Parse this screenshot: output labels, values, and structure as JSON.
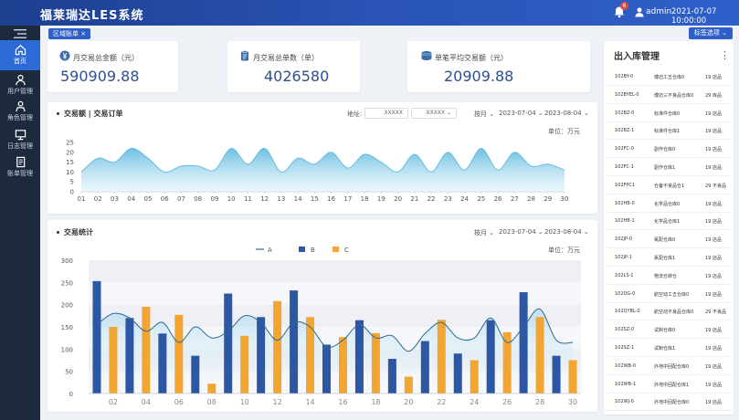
{
  "app": {
    "title": "福莱瑞达LES系统",
    "username": "admin",
    "datetime": "2021-07-07 10:00:00",
    "notification_count": "6"
  },
  "sidebar": {
    "items": [
      {
        "label": "首页"
      },
      {
        "label": "用户管理"
      },
      {
        "label": "角色管理"
      },
      {
        "label": "日志管理"
      },
      {
        "label": "账单管理"
      }
    ]
  },
  "tags": {
    "active_tab": "区域账单 ×",
    "options_label": "标签选项 ⌄"
  },
  "kpis": [
    {
      "label": "月交易总金额（元）",
      "value": "590909.88",
      "icon": "yen-coin-icon"
    },
    {
      "label": "月交易总单数（单）",
      "value": "4026580",
      "icon": "clipboard-icon"
    },
    {
      "label": "单笔平均交易额（元）",
      "value": "20909.88",
      "icon": "coin-stack-icon"
    }
  ],
  "trade_panel": {
    "title": "交易额 | 交易订单",
    "address_label": "地址:",
    "address_value_1": "XXXXX",
    "address_value_2": "XXXXX ⌄",
    "period": "按月 ⌄",
    "date_start": "2023-07-04 ⌄",
    "date_end": "2023-08-04 ⌄",
    "unit": "单位：万元"
  },
  "stats_panel": {
    "title": "交易统计",
    "period": "按月 ⌄",
    "date_start": "2023-07-04 ⌄",
    "date_end": "2023-08-04 ⌄",
    "unit": "单位：万元"
  },
  "inventory": {
    "title": "出入库管理",
    "rows": [
      [
        "102BY-0",
        "傅迈工五仓库0",
        "19 店品"
      ],
      [
        "102BYEL-0",
        "傅迈三不良品仓库0",
        "29 库品"
      ],
      [
        "102BZ-0",
        "标准件仓库0",
        "19 店品"
      ],
      [
        "102BZ-1",
        "标准件仓库1",
        "19 店品"
      ],
      [
        "102FC-0",
        "副作仓库0",
        "19 店品"
      ],
      [
        "102FC-1",
        "副作仓库1",
        "19 店品"
      ],
      [
        "102FPC1",
        "仓备不良品仓1",
        "29 不良品"
      ],
      [
        "102HB-0",
        "化学品仓库0",
        "19 店品"
      ],
      [
        "102HB-1",
        "化学品仓库1",
        "19 店品"
      ],
      [
        "102JP-0",
        "氯配仓库0",
        "19 店品"
      ],
      [
        "102JP-1",
        "氯配仓库1",
        "19 店品"
      ],
      [
        "102LS-1",
        "物流仓转仓",
        "19 店品"
      ],
      [
        "102QG-0",
        "航空动工五仓库0",
        "19 店品"
      ],
      [
        "102QYBL-0",
        "航空动不良品仓库0",
        "29 不良品"
      ],
      [
        "102SZ-0",
        "试制仓库0",
        "19 店品"
      ],
      [
        "102SZ-1",
        "试制仓库1",
        "19 店品"
      ],
      [
        "102WB-0",
        "外地中回配仓库0",
        "19 店品"
      ],
      [
        "102WB-1",
        "外地中回配仓库1",
        "19 店品"
      ],
      [
        "102WJ-0",
        "外地中回配仓库0",
        "19 店品"
      ]
    ]
  },
  "chart_data": [
    {
      "type": "area",
      "title": "交易额 | 交易订单",
      "ylabel": "单位：万元",
      "x": [
        "01",
        "02",
        "03",
        "04",
        "05",
        "06",
        "07",
        "08",
        "09",
        "10",
        "11",
        "12",
        "13",
        "14",
        "15",
        "16",
        "17",
        "18",
        "19",
        "20",
        "21",
        "22",
        "23",
        "24",
        "25",
        "26",
        "27",
        "28",
        "29",
        "30"
      ],
      "values": [
        10,
        17,
        15,
        22,
        17,
        10,
        13,
        13,
        11,
        22,
        14,
        22,
        10,
        17,
        14,
        20,
        12,
        19,
        15,
        10,
        19,
        10,
        20,
        11,
        22,
        11,
        20,
        13,
        14,
        11
      ],
      "ylim": [
        0,
        25
      ],
      "yticks": [
        0,
        5,
        10,
        15,
        20,
        25
      ],
      "color": "#7cc6e3",
      "grid": false
    },
    {
      "type": "bar",
      "title": "交易统计",
      "ylabel": "单位：万元",
      "categories": [
        "01",
        "02",
        "03",
        "04",
        "05",
        "06",
        "07",
        "08",
        "09",
        "10",
        "11",
        "12",
        "13",
        "14",
        "15",
        "16",
        "17",
        "18",
        "19",
        "20",
        "21",
        "22",
        "23",
        "24",
        "25",
        "26",
        "27",
        "28",
        "29",
        "30"
      ],
      "xticks": [
        "02",
        "04",
        "06",
        "08",
        "10",
        "12",
        "14",
        "16",
        "18",
        "20",
        "22",
        "24",
        "26",
        "28",
        "30"
      ],
      "series": [
        {
          "name": "A",
          "type": "line",
          "color": "#2f6a8f",
          "values": [
            155,
            180,
            170,
            140,
            160,
            115,
            150,
            125,
            140,
            175,
            160,
            120,
            160,
            150,
            105,
            120,
            155,
            125,
            130,
            95,
            135,
            160,
            125,
            125,
            170,
            115,
            150,
            190,
            120,
            115
          ]
        },
        {
          "name": "B",
          "type": "bar",
          "color": "#2b57a5",
          "values": [
            253,
            null,
            170,
            null,
            135,
            null,
            85,
            null,
            225,
            null,
            172,
            null,
            232,
            null,
            110,
            null,
            165,
            null,
            78,
            null,
            118,
            null,
            90,
            null,
            165,
            null,
            228,
            null,
            85,
            null
          ]
        },
        {
          "name": "C",
          "type": "bar",
          "color": "#f2a531",
          "values": [
            null,
            150,
            null,
            195,
            null,
            177,
            null,
            22,
            null,
            130,
            null,
            208,
            null,
            172,
            null,
            127,
            null,
            136,
            null,
            38,
            null,
            166,
            null,
            75,
            null,
            138,
            null,
            172,
            null,
            75
          ]
        }
      ],
      "ylim": [
        0,
        300
      ],
      "yticks": [
        0,
        50,
        100,
        150,
        200,
        250,
        300
      ],
      "legend": "top-center",
      "grid": true
    }
  ],
  "colors": {
    "brand": "#2e5fc9",
    "sidebar": "#1d2a3d",
    "accent_blue": "#2b57a5",
    "accent_orange": "#f2a531"
  }
}
